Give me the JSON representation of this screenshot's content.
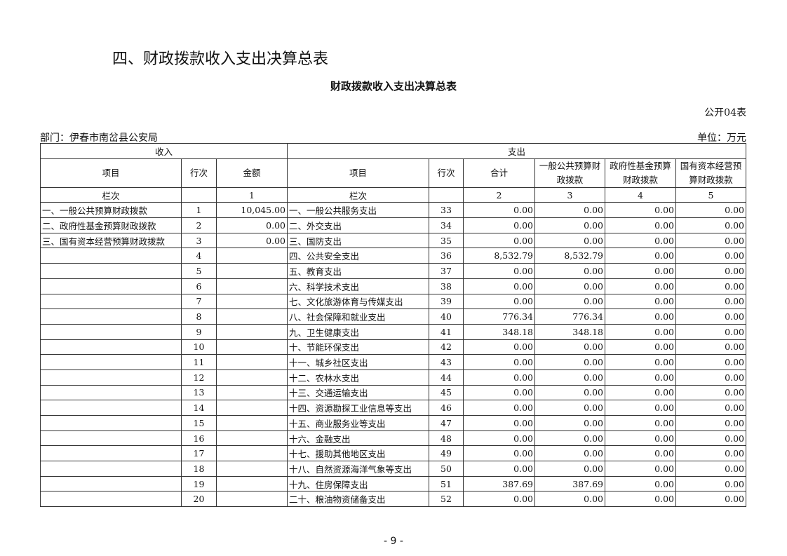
{
  "heading": "四、财政拨款收入支出决算总表",
  "title": "财政拨款收入支出决算总表",
  "form_code": "公开04表",
  "department": "部门：伊春市南岔县公安局",
  "unit": "单位：万元",
  "headers": {
    "income": "收入",
    "expense": "支出",
    "item": "项目",
    "line": "行次",
    "amount": "金额",
    "exp_item": "项目",
    "exp_line": "行次",
    "total": "合计",
    "general": "一般公共预算财政拨款",
    "fund": "政府性基金预算财政拨款",
    "state": "国有资本经营预算财政拨款"
  },
  "col_index": {
    "label": "栏次",
    "amount": "1",
    "exp_label": "栏次",
    "total": "2",
    "general": "3",
    "fund": "4",
    "state": "5"
  },
  "rows": [
    {
      "in_item": "一、一般公共预算财政拨款",
      "in_line": "1",
      "in_amt": "10,045.00",
      "ex_item": "一、一般公共服务支出",
      "ex_line": "33",
      "total": "0.00",
      "general": "0.00",
      "fund": "0.00",
      "state": "0.00"
    },
    {
      "in_item": "二、政府性基金预算财政拨款",
      "in_line": "2",
      "in_amt": "0.00",
      "ex_item": "二、外交支出",
      "ex_line": "34",
      "total": "0.00",
      "general": "0.00",
      "fund": "0.00",
      "state": "0.00"
    },
    {
      "in_item": "三、国有资本经营预算财政拨款",
      "in_line": "3",
      "in_amt": "0.00",
      "ex_item": "三、国防支出",
      "ex_line": "35",
      "total": "0.00",
      "general": "0.00",
      "fund": "0.00",
      "state": "0.00"
    },
    {
      "in_item": "",
      "in_line": "4",
      "in_amt": "",
      "ex_item": "四、公共安全支出",
      "ex_line": "36",
      "total": "8,532.79",
      "general": "8,532.79",
      "fund": "0.00",
      "state": "0.00"
    },
    {
      "in_item": "",
      "in_line": "5",
      "in_amt": "",
      "ex_item": "五、教育支出",
      "ex_line": "37",
      "total": "0.00",
      "general": "0.00",
      "fund": "0.00",
      "state": "0.00"
    },
    {
      "in_item": "",
      "in_line": "6",
      "in_amt": "",
      "ex_item": "六、科学技术支出",
      "ex_line": "38",
      "total": "0.00",
      "general": "0.00",
      "fund": "0.00",
      "state": "0.00"
    },
    {
      "in_item": "",
      "in_line": "7",
      "in_amt": "",
      "ex_item": "七、文化旅游体育与传媒支出",
      "ex_line": "39",
      "total": "0.00",
      "general": "0.00",
      "fund": "0.00",
      "state": "0.00"
    },
    {
      "in_item": "",
      "in_line": "8",
      "in_amt": "",
      "ex_item": "八、社会保障和就业支出",
      "ex_line": "40",
      "total": "776.34",
      "general": "776.34",
      "fund": "0.00",
      "state": "0.00"
    },
    {
      "in_item": "",
      "in_line": "9",
      "in_amt": "",
      "ex_item": "九、卫生健康支出",
      "ex_line": "41",
      "total": "348.18",
      "general": "348.18",
      "fund": "0.00",
      "state": "0.00"
    },
    {
      "in_item": "",
      "in_line": "10",
      "in_amt": "",
      "ex_item": "十、节能环保支出",
      "ex_line": "42",
      "total": "0.00",
      "general": "0.00",
      "fund": "0.00",
      "state": "0.00"
    },
    {
      "in_item": "",
      "in_line": "11",
      "in_amt": "",
      "ex_item": "十一、城乡社区支出",
      "ex_line": "43",
      "total": "0.00",
      "general": "0.00",
      "fund": "0.00",
      "state": "0.00"
    },
    {
      "in_item": "",
      "in_line": "12",
      "in_amt": "",
      "ex_item": "十二、农林水支出",
      "ex_line": "44",
      "total": "0.00",
      "general": "0.00",
      "fund": "0.00",
      "state": "0.00"
    },
    {
      "in_item": "",
      "in_line": "13",
      "in_amt": "",
      "ex_item": "十三、交通运输支出",
      "ex_line": "45",
      "total": "0.00",
      "general": "0.00",
      "fund": "0.00",
      "state": "0.00"
    },
    {
      "in_item": "",
      "in_line": "14",
      "in_amt": "",
      "ex_item": "十四、资源勘探工业信息等支出",
      "ex_line": "46",
      "total": "0.00",
      "general": "0.00",
      "fund": "0.00",
      "state": "0.00"
    },
    {
      "in_item": "",
      "in_line": "15",
      "in_amt": "",
      "ex_item": "十五、商业服务业等支出",
      "ex_line": "47",
      "total": "0.00",
      "general": "0.00",
      "fund": "0.00",
      "state": "0.00"
    },
    {
      "in_item": "",
      "in_line": "16",
      "in_amt": "",
      "ex_item": "十六、金融支出",
      "ex_line": "48",
      "total": "0.00",
      "general": "0.00",
      "fund": "0.00",
      "state": "0.00"
    },
    {
      "in_item": "",
      "in_line": "17",
      "in_amt": "",
      "ex_item": "十七、援助其他地区支出",
      "ex_line": "49",
      "total": "0.00",
      "general": "0.00",
      "fund": "0.00",
      "state": "0.00"
    },
    {
      "in_item": "",
      "in_line": "18",
      "in_amt": "",
      "ex_item": "十八、自然资源海洋气象等支出",
      "ex_line": "50",
      "total": "0.00",
      "general": "0.00",
      "fund": "0.00",
      "state": "0.00"
    },
    {
      "in_item": "",
      "in_line": "19",
      "in_amt": "",
      "ex_item": "十九、住房保障支出",
      "ex_line": "51",
      "total": "387.69",
      "general": "387.69",
      "fund": "0.00",
      "state": "0.00"
    },
    {
      "in_item": "",
      "in_line": "20",
      "in_amt": "",
      "ex_item": "二十、粮油物资储备支出",
      "ex_line": "52",
      "total": "0.00",
      "general": "0.00",
      "fund": "0.00",
      "state": "0.00"
    }
  ],
  "page_number": "- 9 -"
}
